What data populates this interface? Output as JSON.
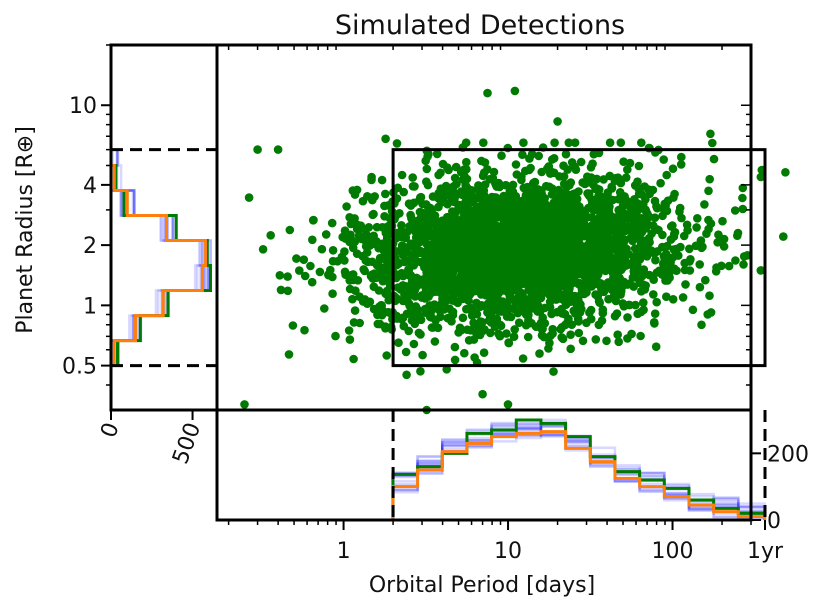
{
  "chart_data": {
    "type": "scatter",
    "title": "Simulated Detections",
    "xlabel": "Orbital Period [days]",
    "ylabel": "Planet Radius [R⊕]",
    "xscale": "log",
    "yscale": "log",
    "xlim": [
      0.17,
      300
    ],
    "ylim": [
      0.3,
      20
    ],
    "xticks": [
      {
        "value": 1,
        "label": "1"
      },
      {
        "value": 10,
        "label": "10"
      },
      {
        "value": 100,
        "label": "100"
      },
      {
        "value": 365,
        "label": "1yr"
      }
    ],
    "yticks": [
      {
        "value": 0.5,
        "label": "0.5"
      },
      {
        "value": 1,
        "label": "1"
      },
      {
        "value": 2,
        "label": "2"
      },
      {
        "value": 4,
        "label": "4"
      },
      {
        "value": 10,
        "label": "10"
      }
    ],
    "box": {
      "period": [
        2,
        365
      ],
      "radius": [
        0.5,
        6
      ]
    },
    "point_color": "#007a00",
    "n_points": 3000,
    "scatter_model": {
      "logP_mean": 1.05,
      "logP_sd": 0.48,
      "logR_mean": 0.28,
      "logR_sd": 0.19,
      "logP_min": -0.6,
      "logP_max": 2.7
    },
    "outliers": [
      {
        "period": 7.5,
        "radius": 11.5
      },
      {
        "period": 11,
        "radius": 11.8
      },
      {
        "period": 20,
        "radius": 8.3
      },
      {
        "period": 170,
        "radius": 7.2
      },
      {
        "period": 0.3,
        "radius": 6.0
      },
      {
        "period": 0.4,
        "radius": 6.0
      },
      {
        "period": 1.8,
        "radius": 6.8
      },
      {
        "period": 0.25,
        "radius": 0.32
      },
      {
        "period": 3.2,
        "radius": 0.3
      },
      {
        "period": 10,
        "radius": 0.32
      },
      {
        "period": 7,
        "radius": 0.36
      },
      {
        "period": 150,
        "radius": 0.8
      },
      {
        "period": 270,
        "radius": 1.6
      },
      {
        "period": 250,
        "radius": 2.3
      }
    ],
    "period_histogram": {
      "ylabel_ticks": [
        {
          "value": 0,
          "label": "0"
        },
        {
          "value": 200,
          "label": "200"
        }
      ],
      "ylim": [
        0,
        330
      ],
      "log_bin_edges": [
        0.3,
        0.45,
        0.6,
        0.75,
        0.9,
        1.05,
        1.2,
        1.35,
        1.5,
        1.65,
        1.8,
        1.95,
        2.1,
        2.25,
        2.4,
        2.56
      ],
      "observed_counts": [
        137,
        160,
        200,
        260,
        270,
        300,
        290,
        250,
        190,
        145,
        120,
        95,
        60,
        35,
        20
      ],
      "model_counts": [
        100,
        150,
        205,
        230,
        250,
        260,
        265,
        215,
        175,
        125,
        100,
        70,
        45,
        25,
        10
      ],
      "observed_color": "#007a00",
      "model_color": "#ff7f0e",
      "sample_color": "#2020ff"
    },
    "radius_histogram": {
      "xlabel_ticks": [
        {
          "value": 0,
          "label": "0"
        },
        {
          "value": 500,
          "label": "500"
        }
      ],
      "xlim": [
        0,
        650
      ],
      "log_bin_edges": [
        -0.301,
        -0.176,
        -0.051,
        0.074,
        0.199,
        0.324,
        0.449,
        0.574,
        0.699,
        0.778
      ],
      "observed_counts": [
        40,
        180,
        350,
        610,
        590,
        400,
        80,
        30,
        0
      ],
      "model_counts": [
        20,
        150,
        320,
        560,
        580,
        340,
        100,
        20,
        0
      ],
      "observed_color": "#007a00",
      "model_color": "#ff7f0e",
      "sample_color": "#2020ff"
    }
  }
}
